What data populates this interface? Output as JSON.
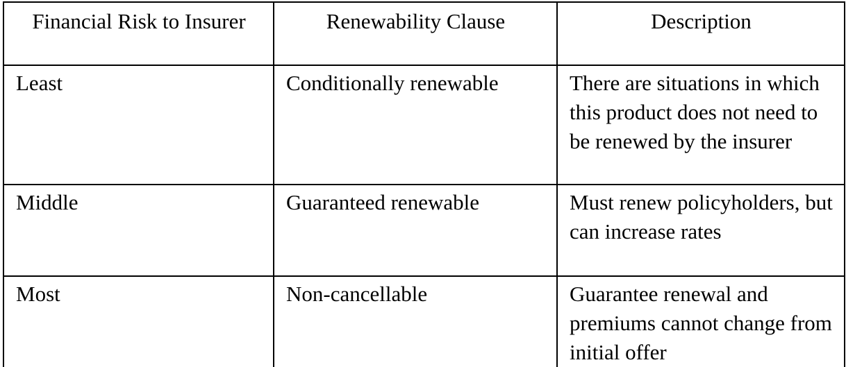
{
  "table": {
    "headers": [
      "Financial Risk to Insurer",
      "Renewability Clause",
      "Description"
    ],
    "rows": [
      {
        "risk": "Least",
        "clause": "Conditionally renewable",
        "description": "There are situations in which this product does not need to be renewed by the insurer"
      },
      {
        "risk": "Middle",
        "clause": "Guaranteed renewable",
        "description": "Must renew policyholders, but can increase rates"
      },
      {
        "risk": "Most",
        "clause": "Non-cancellable",
        "description": "Guarantee renewal and premiums cannot change from initial offer"
      }
    ]
  }
}
